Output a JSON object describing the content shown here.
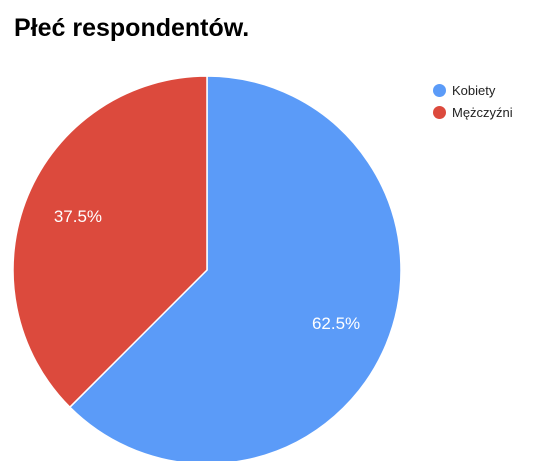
{
  "title": "Płeć respondentów.",
  "chart_data": {
    "type": "pie",
    "title": "Płeć respondentów.",
    "categories": [
      "Kobiety",
      "Mężczyźni"
    ],
    "values": [
      62.5,
      37.5
    ],
    "labels": [
      "62.5%",
      "37.5%"
    ],
    "colors": [
      "#5b9bf8",
      "#dc4a3d"
    ],
    "legend_position": "right"
  },
  "legend": {
    "items": [
      {
        "label": "Kobiety",
        "color": "#5b9bf8"
      },
      {
        "label": "Mężczyźni",
        "color": "#dc4a3d"
      }
    ]
  }
}
